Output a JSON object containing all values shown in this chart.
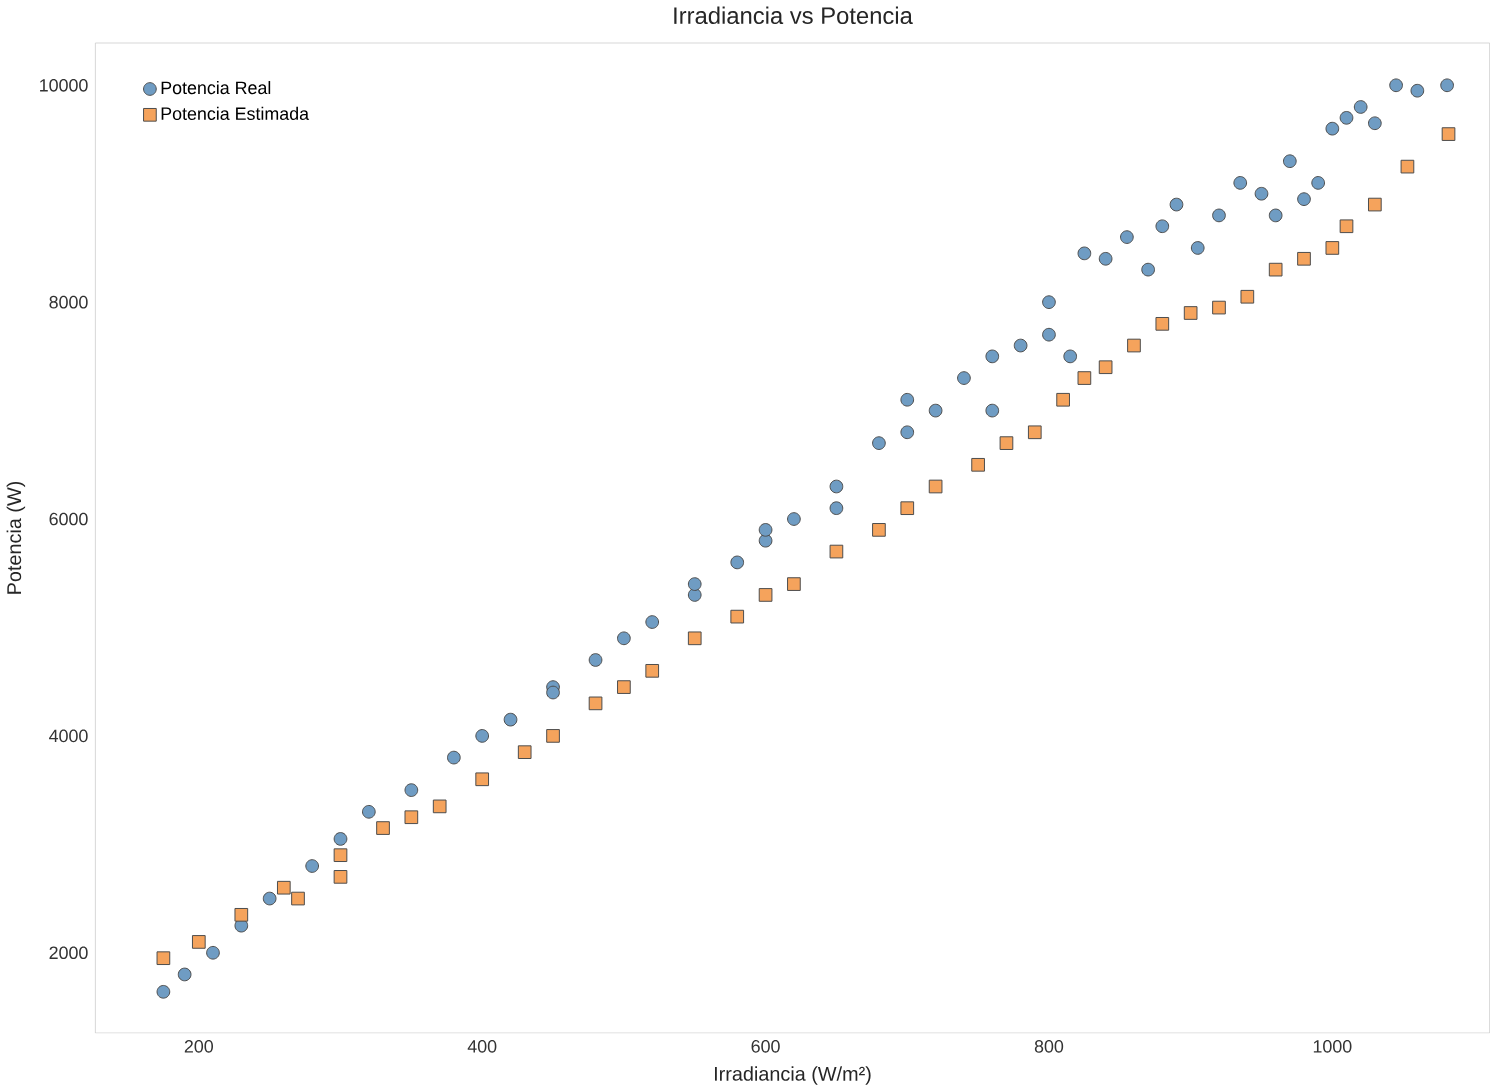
{
  "chart_data": {
    "type": "scatter",
    "title": "Irradiancia vs Potencia",
    "xlabel": "Irradiancia (W/m²)",
    "ylabel": "Potencia (W)",
    "xlim": [
      127,
      1111
    ],
    "ylim": [
      1260,
      10390
    ],
    "xticks": [
      200,
      400,
      600,
      800,
      1000
    ],
    "yticks": [
      2000,
      4000,
      6000,
      8000,
      10000
    ],
    "grid": false,
    "legend": "top left",
    "series": [
      {
        "name": "Potencia Real",
        "color": "#6f9cc3",
        "marker": "circle",
        "x": [
          175,
          190,
          210,
          230,
          250,
          280,
          300,
          320,
          350,
          380,
          400,
          420,
          450,
          450,
          480,
          500,
          520,
          550,
          550,
          580,
          600,
          600,
          620,
          650,
          650,
          680,
          700,
          700,
          720,
          740,
          760,
          760,
          780,
          800,
          800,
          815,
          825,
          840,
          855,
          870,
          880,
          890,
          905,
          920,
          935,
          950,
          960,
          970,
          980,
          990,
          1000,
          1010,
          1020,
          1030,
          1045,
          1060,
          1081
        ],
        "values": [
          1640,
          1800,
          2000,
          2250,
          2500,
          2800,
          3050,
          3300,
          3500,
          3800,
          4000,
          4150,
          4450,
          4400,
          4700,
          4900,
          5050,
          5300,
          5400,
          5600,
          5800,
          5900,
          6000,
          6300,
          6100,
          6700,
          6800,
          7100,
          7000,
          7300,
          7500,
          7000,
          7600,
          7700,
          8000,
          7500,
          8450,
          8400,
          8600,
          8300,
          8700,
          8900,
          8500,
          8800,
          9100,
          9000,
          8800,
          9300,
          8950,
          9100,
          9600,
          9700,
          9800,
          9650,
          10000,
          9950,
          10000
        ]
      },
      {
        "name": "Potencia Estimada",
        "color": "#f5a35c",
        "marker": "square",
        "x": [
          175,
          200,
          230,
          260,
          270,
          300,
          300,
          330,
          350,
          370,
          400,
          430,
          450,
          480,
          500,
          520,
          550,
          580,
          600,
          620,
          650,
          680,
          700,
          720,
          750,
          770,
          790,
          810,
          825,
          840,
          860,
          880,
          900,
          920,
          940,
          960,
          980,
          1000,
          1010,
          1030,
          1053,
          1082
        ],
        "values": [
          1950,
          2100,
          2350,
          2600,
          2500,
          2700,
          2900,
          3150,
          3250,
          3350,
          3600,
          3850,
          4000,
          4300,
          4450,
          4600,
          4900,
          5100,
          5300,
          5400,
          5700,
          5900,
          6100,
          6300,
          6500,
          6700,
          6800,
          7100,
          7300,
          7400,
          7600,
          7800,
          7900,
          7950,
          8050,
          8300,
          8400,
          8500,
          8700,
          8900,
          9250,
          9550
        ]
      }
    ]
  }
}
